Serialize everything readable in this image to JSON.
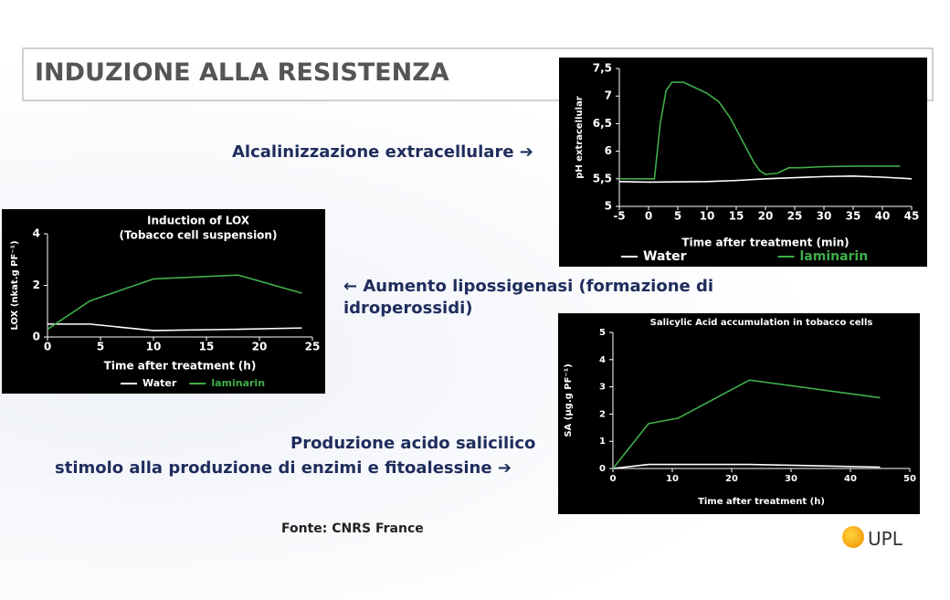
{
  "header": {
    "title": "INDUZIONE ALLA RESISTENZA"
  },
  "captions": {
    "alkalinization": "Alcalinizzazione extracellulare ➔",
    "lox": "← Aumento lipossigenasi (formazione di idroperossidi)",
    "sa_line1": "Produzione acido salicilico",
    "sa_line2": "stimolo alla produzione di enzimi e fitoalessine ➔"
  },
  "source": "Fonte: CNRS France",
  "logo": "UPL",
  "chart_data": [
    {
      "type": "line",
      "x_label": "Time after treatment (min)",
      "y_label": "pH extracellular",
      "xlim": [
        -5,
        45
      ],
      "xticks": [
        -5,
        0,
        5,
        10,
        15,
        20,
        25,
        30,
        35,
        40,
        45
      ],
      "ylim": [
        5,
        7.5
      ],
      "yticks": [
        5,
        {
          "value": 5.5,
          "label": "5,5"
        },
        6,
        {
          "value": 6.5,
          "label": "6,5"
        },
        7,
        {
          "value": 7.5,
          "label": "7,5"
        }
      ],
      "legend": "bottom",
      "series": [
        {
          "name": "Water",
          "color": "#ffffff",
          "x": [
            -5,
            0,
            10,
            15,
            20,
            25,
            30,
            35,
            40,
            45
          ],
          "values": [
            5.45,
            5.44,
            5.45,
            5.47,
            5.5,
            5.52,
            5.54,
            5.55,
            5.53,
            5.5
          ]
        },
        {
          "name": "laminarin",
          "color": "#3fae49",
          "x": [
            -5,
            0,
            1,
            2,
            3,
            4,
            6,
            8,
            10,
            12,
            14,
            16,
            18,
            19,
            20,
            22,
            24,
            26,
            30,
            35,
            40,
            43
          ],
          "values": [
            5.5,
            5.5,
            5.5,
            6.5,
            7.1,
            7.25,
            7.25,
            7.15,
            7.05,
            6.9,
            6.6,
            6.2,
            5.8,
            5.65,
            5.58,
            5.6,
            5.7,
            5.7,
            5.72,
            5.73,
            5.73,
            5.73
          ]
        }
      ]
    },
    {
      "type": "line",
      "title": "Induction of LOX",
      "subtitle": "(Tobacco cell suspension)",
      "x_label": "Time after treatment (h)",
      "y_label": "LOX (nkat.g PF⁻¹)",
      "xlim": [
        0,
        25
      ],
      "xticks": [
        0,
        5,
        10,
        15,
        20,
        25
      ],
      "ylim": [
        0,
        4
      ],
      "yticks": [
        0,
        2,
        4
      ],
      "legend": "bottom",
      "series": [
        {
          "name": "Water",
          "color": "#ffffff",
          "x": [
            0,
            4,
            10,
            18,
            24
          ],
          "values": [
            0.5,
            0.5,
            0.25,
            0.3,
            0.35
          ]
        },
        {
          "name": "laminarin",
          "color": "#3fae49",
          "x": [
            0,
            4,
            10,
            18,
            24
          ],
          "values": [
            0.3,
            1.4,
            2.25,
            2.4,
            1.7
          ]
        }
      ]
    },
    {
      "type": "line",
      "title": "Salicylic Acid accumulation in tobacco cells",
      "x_label": "Time after treatment (h)",
      "y_label": "SA (µg.g PF⁻¹)",
      "xlim": [
        0,
        50
      ],
      "xticks": [
        0,
        10,
        20,
        30,
        40,
        50
      ],
      "ylim": [
        0,
        5
      ],
      "yticks": [
        0,
        1,
        2,
        3,
        4,
        5
      ],
      "series": [
        {
          "name": "Water",
          "color": "#ffffff",
          "x": [
            0,
            6,
            11,
            23,
            45
          ],
          "values": [
            0,
            0.15,
            0.15,
            0.15,
            0.05
          ]
        },
        {
          "name": "laminarin",
          "color": "#3fae49",
          "x": [
            0,
            6,
            11,
            23,
            45
          ],
          "values": [
            0,
            1.65,
            1.85,
            3.25,
            2.6
          ]
        }
      ]
    }
  ]
}
